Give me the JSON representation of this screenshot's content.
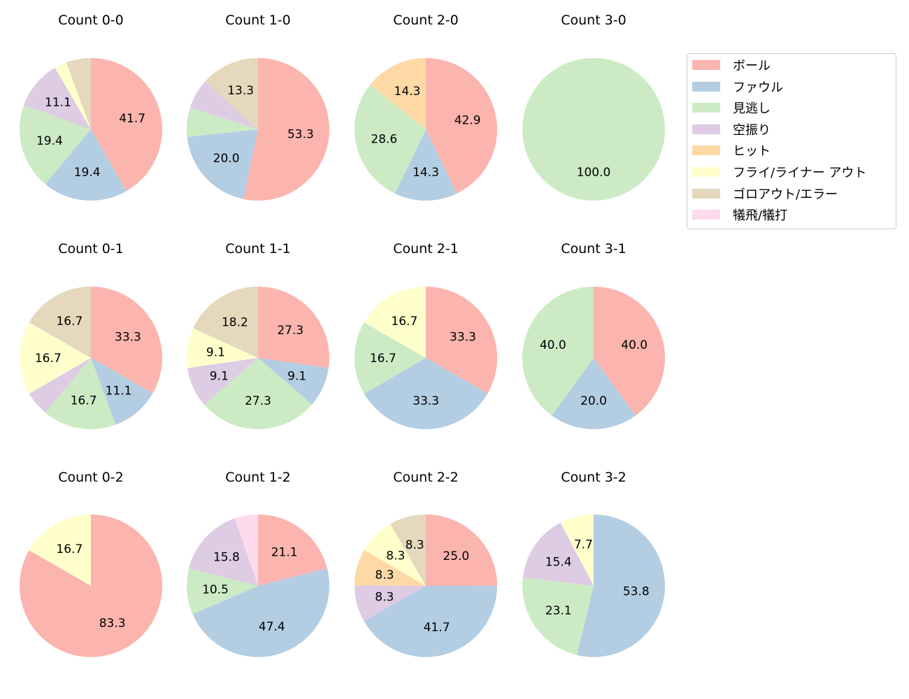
{
  "chart_data": [
    {
      "type": "pie",
      "title": "Count 0-0",
      "values": [
        41.7,
        19.4,
        19.4,
        11.1,
        0,
        2.8,
        5.6,
        0
      ]
    },
    {
      "type": "pie",
      "title": "Count 1-0",
      "values": [
        53.3,
        20.0,
        6.7,
        6.7,
        0,
        0,
        13.3,
        0
      ]
    },
    {
      "type": "pie",
      "title": "Count 2-0",
      "values": [
        42.9,
        14.3,
        28.6,
        0,
        14.3,
        0,
        0,
        0
      ]
    },
    {
      "type": "pie",
      "title": "Count 3-0",
      "values": [
        0,
        0,
        100.0,
        0,
        0,
        0,
        0,
        0
      ]
    },
    {
      "type": "pie",
      "title": "Count 0-1",
      "values": [
        33.3,
        11.1,
        16.7,
        5.6,
        0,
        16.7,
        16.7,
        0
      ]
    },
    {
      "type": "pie",
      "title": "Count 1-1",
      "values": [
        27.3,
        9.1,
        27.3,
        9.1,
        0,
        9.1,
        18.2,
        0
      ]
    },
    {
      "type": "pie",
      "title": "Count 2-1",
      "values": [
        33.3,
        33.3,
        16.7,
        0,
        0,
        16.7,
        0,
        0
      ]
    },
    {
      "type": "pie",
      "title": "Count 3-1",
      "values": [
        40.0,
        20.0,
        40.0,
        0,
        0,
        0,
        0,
        0
      ]
    },
    {
      "type": "pie",
      "title": "Count 0-2",
      "values": [
        83.3,
        0,
        0,
        0,
        0,
        16.7,
        0,
        0
      ]
    },
    {
      "type": "pie",
      "title": "Count 1-2",
      "values": [
        21.1,
        47.4,
        10.5,
        15.8,
        0,
        0,
        0,
        5.3
      ]
    },
    {
      "type": "pie",
      "title": "Count 2-2",
      "values": [
        25.0,
        41.7,
        0,
        8.3,
        8.3,
        8.3,
        8.3,
        0
      ]
    },
    {
      "type": "pie",
      "title": "Count 3-2",
      "values": [
        0,
        53.8,
        23.1,
        15.4,
        0,
        7.7,
        0,
        0
      ]
    }
  ],
  "categories": [
    "ボール",
    "ファウル",
    "見逃し",
    "空振り",
    "ヒット",
    "フライ/ライナー アウト",
    "ゴロアウト/エラー",
    "犠飛/犠打"
  ],
  "colors": [
    "#fbb4ae",
    "#b3cde3",
    "#ccebc5",
    "#decbe4",
    "#fed9a6",
    "#ffffcc",
    "#e5d8bd",
    "#fddaec"
  ],
  "legend_position": "upper-right"
}
